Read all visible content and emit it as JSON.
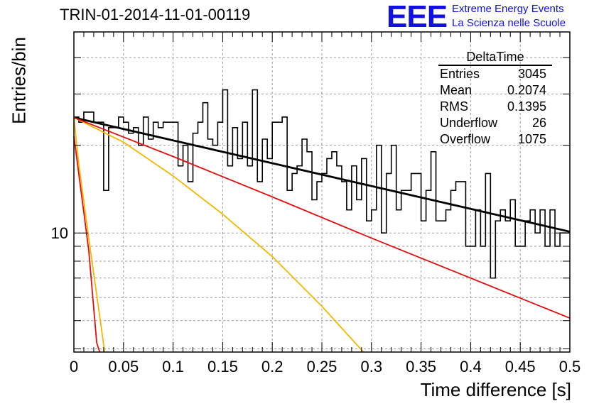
{
  "title": "TRIN-01-2014-11-01-00119",
  "logo": {
    "mark": "EEE",
    "line1": "Extreme Energy Events",
    "line2": "La Scienza nelle Scuole",
    "color": "#1010e0"
  },
  "stats_box": {
    "title": "DeltaTime",
    "rows": [
      {
        "label": "Entries",
        "value": "3045"
      },
      {
        "label": "Mean",
        "value": "0.2074"
      },
      {
        "label": "RMS",
        "value": "0.1395"
      },
      {
        "label": "Underflow",
        "value": "26"
      },
      {
        "label": "Overflow",
        "value": "1075"
      }
    ]
  },
  "chart_data": {
    "type": "histogram",
    "xlabel": "Time difference [s]",
    "ylabel": "Entries/bin",
    "xlim": [
      0,
      0.5
    ],
    "ylim": [
      3.9,
      49
    ],
    "y_scale": "log",
    "grid": true,
    "x_ticks": [
      "0",
      "0.05",
      "0.1",
      "0.15",
      "0.2",
      "0.25",
      "0.3",
      "0.35",
      "0.4",
      "0.45",
      "0.5"
    ],
    "y_tick_labels": [
      "10"
    ],
    "bin_width": 0.005,
    "histogram": {
      "color": "#000000",
      "values": [
        25,
        24,
        26,
        26,
        24,
        24,
        14,
        23,
        23,
        25,
        24,
        22,
        23,
        20,
        25,
        21,
        24,
        23,
        24,
        24,
        24,
        17,
        20,
        15,
        22,
        24,
        28,
        21,
        20,
        24,
        31,
        17,
        23,
        18,
        24,
        17,
        31,
        15,
        21,
        18,
        24,
        24,
        25,
        14,
        16,
        17,
        21,
        19,
        13,
        15,
        16,
        18,
        19,
        17,
        15,
        12,
        17,
        13,
        18,
        11,
        12,
        20,
        10,
        16,
        20,
        12,
        14,
        14,
        16,
        16,
        11,
        14,
        19,
        11,
        11,
        12,
        14,
        15,
        15,
        9,
        9,
        12,
        9,
        16,
        7,
        11,
        12,
        11,
        13,
        9,
        9,
        11,
        12,
        10,
        12,
        9,
        12,
        9,
        10,
        10
      ]
    },
    "fits": [
      {
        "name": "fit",
        "color": "#000000",
        "points": [
          [
            0,
            24.9
          ],
          [
            0.5,
            10.1
          ]
        ]
      },
      {
        "name": "fast-decay-red",
        "color": "#e01010",
        "points": [
          [
            0,
            21.5
          ],
          [
            0.015,
            8.7
          ],
          [
            0.023,
            4.2
          ],
          [
            0.026,
            3.9
          ]
        ]
      },
      {
        "name": "fast-decay-yellow",
        "color": "#f5b800",
        "points": [
          [
            0,
            24.9
          ],
          [
            0.005,
            17.2
          ],
          [
            0.015,
            9.6
          ],
          [
            0.027,
            4.9
          ],
          [
            0.031,
            3.9
          ]
        ]
      },
      {
        "name": "medium-decay-yellow",
        "color": "#f5b800",
        "points": [
          [
            0,
            24.9
          ],
          [
            0.05,
            20.5
          ],
          [
            0.1,
            15.7
          ],
          [
            0.15,
            11.6
          ],
          [
            0.2,
            8.3
          ],
          [
            0.25,
            5.6
          ],
          [
            0.292,
            3.9
          ]
        ]
      },
      {
        "name": "slow-decay-red",
        "color": "#e01010",
        "points": [
          [
            0,
            24.9
          ],
          [
            0.1,
            18.3
          ],
          [
            0.2,
            13.3
          ],
          [
            0.3,
            9.6
          ],
          [
            0.4,
            7.0
          ],
          [
            0.5,
            5.1
          ]
        ]
      }
    ]
  }
}
